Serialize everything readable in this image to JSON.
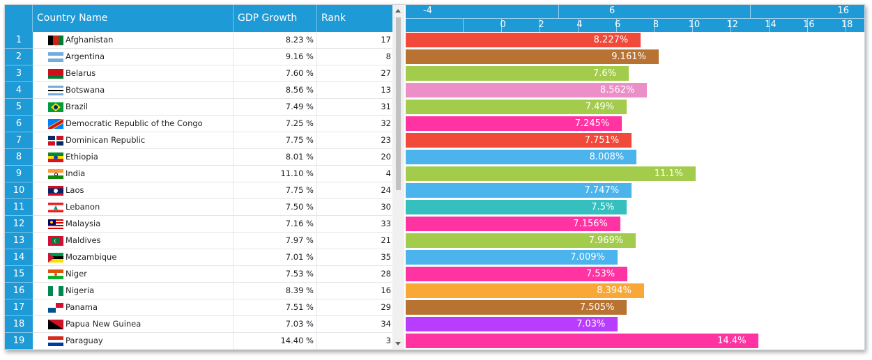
{
  "grid": {
    "headers": {
      "name": "Country Name",
      "gdp": "GDP Growth",
      "rank": "Rank"
    },
    "rows": [
      {
        "num": "1",
        "name": "Afghanistan",
        "gdp": "8.23 %",
        "rank": "17",
        "flag": "afghanistan-flag-icon"
      },
      {
        "num": "2",
        "name": "Argentina",
        "gdp": "9.16 %",
        "rank": "8",
        "flag": "argentina-flag-icon"
      },
      {
        "num": "3",
        "name": "Belarus",
        "gdp": "7.60 %",
        "rank": "27",
        "flag": "belarus-flag-icon"
      },
      {
        "num": "4",
        "name": "Botswana",
        "gdp": "8.56 %",
        "rank": "13",
        "flag": "botswana-flag-icon"
      },
      {
        "num": "5",
        "name": "Brazil",
        "gdp": "7.49 %",
        "rank": "31",
        "flag": "brazil-flag-icon"
      },
      {
        "num": "6",
        "name": "Democratic Republic of the Congo",
        "gdp": "7.25 %",
        "rank": "32",
        "flag": "dr-congo-flag-icon"
      },
      {
        "num": "7",
        "name": "Dominican Republic",
        "gdp": "7.75 %",
        "rank": "23",
        "flag": "dominican-republic-flag-icon"
      },
      {
        "num": "8",
        "name": "Ethiopia",
        "gdp": "8.01 %",
        "rank": "20",
        "flag": "ethiopia-flag-icon"
      },
      {
        "num": "9",
        "name": "India",
        "gdp": "11.10 %",
        "rank": "4",
        "flag": "india-flag-icon"
      },
      {
        "num": "10",
        "name": "Laos",
        "gdp": "7.75 %",
        "rank": "24",
        "flag": "laos-flag-icon"
      },
      {
        "num": "11",
        "name": "Lebanon",
        "gdp": "7.50 %",
        "rank": "30",
        "flag": "lebanon-flag-icon"
      },
      {
        "num": "12",
        "name": "Malaysia",
        "gdp": "7.16 %",
        "rank": "33",
        "flag": "malaysia-flag-icon"
      },
      {
        "num": "13",
        "name": "Maldives",
        "gdp": "7.97 %",
        "rank": "21",
        "flag": "maldives-flag-icon"
      },
      {
        "num": "14",
        "name": "Mozambique",
        "gdp": "7.01 %",
        "rank": "35",
        "flag": "mozambique-flag-icon"
      },
      {
        "num": "15",
        "name": "Niger",
        "gdp": "7.53 %",
        "rank": "28",
        "flag": "niger-flag-icon"
      },
      {
        "num": "16",
        "name": "Nigeria",
        "gdp": "8.39 %",
        "rank": "16",
        "flag": "nigeria-flag-icon"
      },
      {
        "num": "17",
        "name": "Panama",
        "gdp": "7.51 %",
        "rank": "29",
        "flag": "panama-flag-icon"
      },
      {
        "num": "18",
        "name": "Papua New Guinea",
        "gdp": "7.03 %",
        "rank": "34",
        "flag": "papua-new-guinea-flag-icon"
      },
      {
        "num": "19",
        "name": "Paraguay",
        "gdp": "14.40 %",
        "rank": "3",
        "flag": "paraguay-flag-icon"
      }
    ]
  },
  "colors": {
    "header": "#1e9ad6",
    "row_number_bg": "#1e9ad6",
    "grid_line": "#e3e6ea"
  },
  "chart_data": {
    "type": "bar",
    "orientation": "horizontal",
    "x_range": [
      -4,
      20
    ],
    "major_ticks": [
      "-4",
      "6",
      "16"
    ],
    "ticks": [
      "0",
      "2",
      "4",
      "6",
      "8",
      "10",
      "12",
      "14",
      "16",
      "18",
      "20"
    ],
    "categories": [
      "Afghanistan",
      "Argentina",
      "Belarus",
      "Botswana",
      "Brazil",
      "Democratic Republic of the Congo",
      "Dominican Republic",
      "Ethiopia",
      "India",
      "Laos",
      "Lebanon",
      "Malaysia",
      "Maldives",
      "Mozambique",
      "Niger",
      "Nigeria",
      "Panama",
      "Papua New Guinea",
      "Paraguay"
    ],
    "values": [
      8.227,
      9.161,
      7.6,
      8.562,
      7.49,
      7.245,
      7.751,
      8.008,
      11.1,
      7.747,
      7.5,
      7.156,
      7.969,
      7.009,
      7.53,
      8.394,
      7.505,
      7.03,
      14.4
    ],
    "labels": [
      "8.227%",
      "9.161%",
      "7.6%",
      "8.562%",
      "7.49%",
      "7.245%",
      "7.751%",
      "8.008%",
      "11.1%",
      "7.747%",
      "7.5%",
      "7.156%",
      "7.969%",
      "7.009%",
      "7.53%",
      "8.394%",
      "7.505%",
      "7.03%",
      "14.4%"
    ],
    "colors": [
      "#f14a3a",
      "#b87333",
      "#a4cc4c",
      "#ec8fc9",
      "#a4cc4c",
      "#ff33a1",
      "#f14a3a",
      "#4bb4ec",
      "#a4cc4c",
      "#4bb4ec",
      "#36bfbf",
      "#ff33a1",
      "#a4cc4c",
      "#4bb4ec",
      "#ff33a1",
      "#f9a838",
      "#b87333",
      "#b93dff",
      "#ff33a1"
    ]
  }
}
